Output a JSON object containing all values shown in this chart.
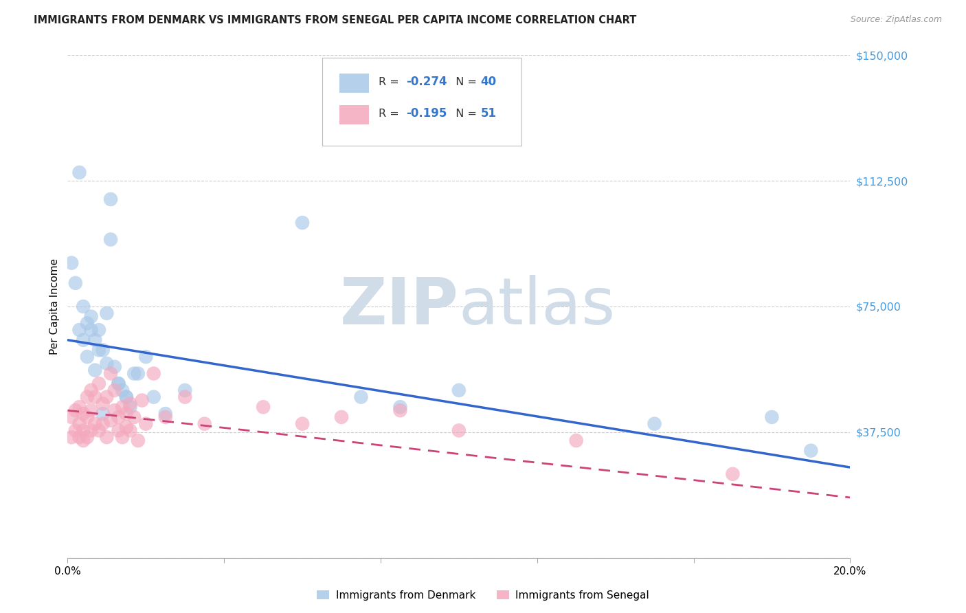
{
  "title": "IMMIGRANTS FROM DENMARK VS IMMIGRANTS FROM SENEGAL PER CAPITA INCOME CORRELATION CHART",
  "source": "Source: ZipAtlas.com",
  "ylabel": "Per Capita Income",
  "xlim": [
    0.0,
    0.2
  ],
  "ylim": [
    0,
    150000
  ],
  "yticks": [
    0,
    37500,
    75000,
    112500,
    150000
  ],
  "ytick_labels": [
    "",
    "$37,500",
    "$75,000",
    "$112,500",
    "$150,000"
  ],
  "xticks": [
    0.0,
    0.04,
    0.08,
    0.12,
    0.16,
    0.2
  ],
  "xtick_labels": [
    "0.0%",
    "",
    "",
    "",
    "",
    "20.0%"
  ],
  "denmark_R": -0.274,
  "denmark_N": 40,
  "senegal_R": -0.195,
  "senegal_N": 51,
  "denmark_color": "#a8c8e8",
  "senegal_color": "#f4a8be",
  "denmark_line_color": "#3366cc",
  "senegal_line_color": "#cc4477",
  "background_color": "#ffffff",
  "grid_color": "#cccccc",
  "watermark_color": "#d0dde8",
  "denmark_line_y0": 65000,
  "denmark_line_y1": 27000,
  "senegal_line_y0": 44000,
  "senegal_line_y1": 18000,
  "denmark_x": [
    0.002,
    0.003,
    0.004,
    0.005,
    0.006,
    0.007,
    0.008,
    0.009,
    0.01,
    0.011,
    0.012,
    0.013,
    0.014,
    0.015,
    0.016,
    0.018,
    0.02,
    0.022,
    0.025,
    0.03,
    0.001,
    0.003,
    0.004,
    0.005,
    0.006,
    0.007,
    0.008,
    0.009,
    0.01,
    0.011,
    0.013,
    0.015,
    0.017,
    0.06,
    0.075,
    0.085,
    0.1,
    0.15,
    0.18,
    0.19
  ],
  "denmark_y": [
    82000,
    115000,
    75000,
    70000,
    72000,
    65000,
    68000,
    62000,
    73000,
    107000,
    57000,
    52000,
    50000,
    48000,
    45000,
    55000,
    60000,
    48000,
    43000,
    50000,
    88000,
    68000,
    65000,
    60000,
    68000,
    56000,
    62000,
    43000,
    58000,
    95000,
    52000,
    48000,
    55000,
    100000,
    48000,
    45000,
    50000,
    40000,
    42000,
    32000
  ],
  "senegal_x": [
    0.001,
    0.001,
    0.002,
    0.002,
    0.003,
    0.003,
    0.003,
    0.004,
    0.004,
    0.004,
    0.005,
    0.005,
    0.005,
    0.006,
    0.006,
    0.006,
    0.007,
    0.007,
    0.008,
    0.008,
    0.009,
    0.009,
    0.01,
    0.01,
    0.011,
    0.011,
    0.012,
    0.012,
    0.013,
    0.013,
    0.014,
    0.014,
    0.015,
    0.015,
    0.016,
    0.016,
    0.017,
    0.018,
    0.019,
    0.02,
    0.022,
    0.025,
    0.03,
    0.035,
    0.05,
    0.06,
    0.07,
    0.085,
    0.1,
    0.13,
    0.17
  ],
  "senegal_y": [
    42000,
    36000,
    44000,
    38000,
    45000,
    40000,
    36000,
    43000,
    38000,
    35000,
    48000,
    42000,
    36000,
    50000,
    44000,
    38000,
    48000,
    40000,
    52000,
    38000,
    46000,
    40000,
    48000,
    36000,
    55000,
    41000,
    50000,
    44000,
    38000,
    42000,
    45000,
    36000,
    43000,
    39000,
    46000,
    38000,
    42000,
    35000,
    47000,
    40000,
    55000,
    42000,
    48000,
    40000,
    45000,
    40000,
    42000,
    44000,
    38000,
    35000,
    25000
  ]
}
